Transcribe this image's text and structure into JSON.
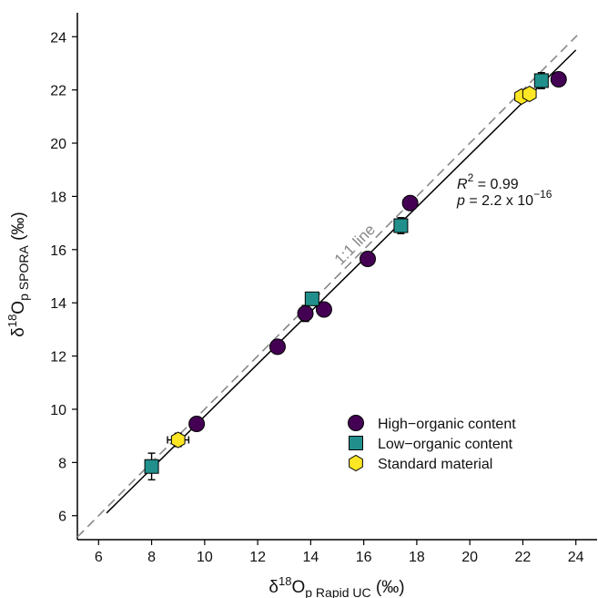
{
  "chart_data": {
    "type": "scatter",
    "x_axis_title": {
      "main": "δ",
      "sup": "18",
      "letter": "O",
      "sub": "p Rapid UC",
      "unit": " (‰)"
    },
    "y_axis_title": {
      "main": "δ",
      "sup": "18",
      "letter": "O",
      "sub": "p SPORA",
      "unit": " (‰)"
    },
    "xlim": [
      5.2,
      24.8
    ],
    "ylim": [
      5.1,
      24.9
    ],
    "xticks": [
      "6",
      "8",
      "10",
      "12",
      "14",
      "16",
      "18",
      "20",
      "22",
      "24"
    ],
    "yticks": [
      "6",
      "8",
      "10",
      "12",
      "14",
      "16",
      "18",
      "20",
      "22",
      "24"
    ],
    "grid": false,
    "legend_position": "bottom-right",
    "series": [
      {
        "name": "High−organic content",
        "marker": "circle",
        "color": "#440154",
        "points": [
          {
            "x": 9.7,
            "y": 9.45
          },
          {
            "x": 12.75,
            "y": 12.35
          },
          {
            "x": 13.8,
            "y": 13.6,
            "xerr": 0.2,
            "yerr": 0.3
          },
          {
            "x": 14.5,
            "y": 13.75
          },
          {
            "x": 16.15,
            "y": 15.65,
            "xerr": 0.25
          },
          {
            "x": 17.75,
            "y": 17.75
          },
          {
            "x": 23.35,
            "y": 22.4
          }
        ]
      },
      {
        "name": "Low−organic content",
        "marker": "square",
        "color": "#21908C",
        "points": [
          {
            "x": 8.0,
            "y": 7.85,
            "yerr": 0.5
          },
          {
            "x": 14.05,
            "y": 14.15
          },
          {
            "x": 17.4,
            "y": 16.9,
            "yerr": 0.3
          },
          {
            "x": 22.7,
            "y": 22.35,
            "yerr": 0.3
          }
        ]
      },
      {
        "name": "Standard material",
        "marker": "hexagon",
        "color": "#FDE725",
        "points": [
          {
            "x": 9.0,
            "y": 8.85,
            "xerr": 0.4,
            "yerr": 0.25
          },
          {
            "x": 21.95,
            "y": 21.75,
            "xerr": 0.2
          },
          {
            "x": 22.25,
            "y": 21.85
          }
        ]
      }
    ],
    "reference_line": {
      "label": "1:1 line",
      "slope": 1,
      "intercept": 0,
      "style": "dashed",
      "color": "#888888"
    },
    "fit_line": {
      "x_start": 6.3,
      "x_end": 24.0,
      "y_start": 6.1,
      "y_end": 23.5,
      "color": "#000000"
    },
    "stats": {
      "r2_symbol": "R",
      "r2_power": "2",
      "r2_value": " = 0.99",
      "p_symbol": "p",
      "p_value": " = 2.2 x 10",
      "p_exponent": "−16"
    }
  }
}
